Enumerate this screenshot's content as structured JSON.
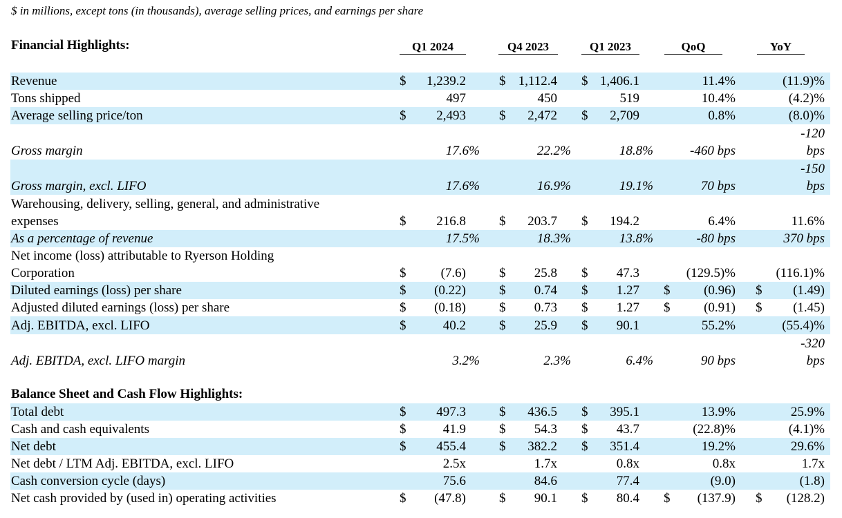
{
  "note": "$ in millions, except tons (in thousands), average selling prices, and earnings per share",
  "section1_title": "Financial Highlights:",
  "section2_title": "Balance Sheet and Cash Flow Highlights:",
  "columns": [
    "Q1 2024",
    "Q4 2023",
    "Q1 2023",
    "QoQ",
    "YoY"
  ],
  "rows": [
    {
      "label": "Revenue",
      "shaded": true,
      "italic": false,
      "d1": "$",
      "q1_2024": "1,239.2",
      "d2": "$",
      "q4_2023": "1,112.4",
      "d3": "$",
      "q1_2023": "1,406.1",
      "d4": "",
      "qoq": "11.4%",
      "d5": "",
      "yoy": "(11.9)%"
    },
    {
      "label": "Tons shipped",
      "shaded": false,
      "italic": false,
      "d1": "",
      "q1_2024": "497",
      "d2": "",
      "q4_2023": "450",
      "d3": "",
      "q1_2023": "519",
      "d4": "",
      "qoq": "10.4%",
      "d5": "",
      "yoy": "(4.2)%"
    },
    {
      "label": "Average selling price/ton",
      "shaded": true,
      "italic": false,
      "d1": "$",
      "q1_2024": "2,493",
      "d2": "$",
      "q4_2023": "2,472",
      "d3": "$",
      "q1_2023": "2,709",
      "d4": "",
      "qoq": "0.8%",
      "d5": "",
      "yoy": "(8.0)%"
    },
    {
      "label": "Gross margin",
      "shaded": false,
      "italic": true,
      "d1": "",
      "q1_2024": "17.6%",
      "d2": "",
      "q4_2023": "22.2%",
      "d3": "",
      "q1_2023": "18.8%",
      "d4": "",
      "qoq": "-460 bps",
      "d5": "",
      "yoy": [
        "-120",
        "bps"
      ]
    },
    {
      "label": "Gross margin, excl. LIFO",
      "shaded": true,
      "italic": true,
      "d1": "",
      "q1_2024": "17.6%",
      "d2": "",
      "q4_2023": "16.9%",
      "d3": "",
      "q1_2023": "19.1%",
      "d4": "",
      "qoq": "70 bps",
      "d5": "",
      "yoy": [
        "-150",
        "bps"
      ]
    },
    {
      "label": [
        "Warehousing, delivery, selling, general, and administrative",
        "expenses"
      ],
      "shaded": false,
      "italic": false,
      "d1": "$",
      "q1_2024": "216.8",
      "d2": "$",
      "q4_2023": "203.7",
      "d3": "$",
      "q1_2023": "194.2",
      "d4": "",
      "qoq": "6.4%",
      "d5": "",
      "yoy": "11.6%"
    },
    {
      "label": "As a percentage of revenue",
      "shaded": true,
      "italic": true,
      "d1": "",
      "q1_2024": "17.5%",
      "d2": "",
      "q4_2023": "18.3%",
      "d3": "",
      "q1_2023": "13.8%",
      "d4": "",
      "qoq": "-80 bps",
      "d5": "",
      "yoy": "370 bps"
    },
    {
      "label": [
        "Net income (loss) attributable to Ryerson Holding",
        "Corporation"
      ],
      "shaded": false,
      "italic": false,
      "d1": "$",
      "q1_2024": "(7.6)",
      "d2": "$",
      "q4_2023": "25.8",
      "d3": "$",
      "q1_2023": "47.3",
      "d4": "",
      "qoq": "(129.5)%",
      "d5": "",
      "yoy": "(116.1)%"
    },
    {
      "label": "Diluted earnings (loss) per share",
      "shaded": true,
      "italic": false,
      "d1": "$",
      "q1_2024": "(0.22)",
      "d2": "$",
      "q4_2023": "0.74",
      "d3": "$",
      "q1_2023": "1.27",
      "d4": "$",
      "qoq": "(0.96)",
      "d5": "$",
      "yoy": "(1.49)"
    },
    {
      "label": "Adjusted diluted earnings (loss) per share",
      "shaded": false,
      "italic": false,
      "d1": "$",
      "q1_2024": "(0.18)",
      "d2": "$",
      "q4_2023": "0.73",
      "d3": "$",
      "q1_2023": "1.27",
      "d4": "$",
      "qoq": "(0.91)",
      "d5": "$",
      "yoy": "(1.45)"
    },
    {
      "label": "Adj. EBITDA, excl. LIFO",
      "shaded": true,
      "italic": false,
      "d1": "$",
      "q1_2024": "40.2",
      "d2": "$",
      "q4_2023": "25.9",
      "d3": "$",
      "q1_2023": "90.1",
      "d4": "",
      "qoq": "55.2%",
      "d5": "",
      "yoy": "(55.4)%"
    },
    {
      "label": "Adj. EBITDA, excl. LIFO margin",
      "shaded": false,
      "italic": true,
      "d1": "",
      "q1_2024": "3.2%",
      "d2": "",
      "q4_2023": "2.3%",
      "d3": "",
      "q1_2023": "6.4%",
      "d4": "",
      "qoq": "90 bps",
      "d5": "",
      "yoy": [
        "-320",
        "bps"
      ]
    },
    {
      "label": "Total debt",
      "shaded": true,
      "italic": false,
      "d1": "$",
      "q1_2024": "497.3",
      "d2": "$",
      "q4_2023": "436.5",
      "d3": "$",
      "q1_2023": "395.1",
      "d4": "",
      "qoq": "13.9%",
      "d5": "",
      "yoy": "25.9%"
    },
    {
      "label": "Cash and cash equivalents",
      "shaded": false,
      "italic": false,
      "d1": "$",
      "q1_2024": "41.9",
      "d2": "$",
      "q4_2023": "54.3",
      "d3": "$",
      "q1_2023": "43.7",
      "d4": "",
      "qoq": "(22.8)%",
      "d5": "",
      "yoy": "(4.1)%"
    },
    {
      "label": "Net debt",
      "shaded": true,
      "italic": false,
      "d1": "$",
      "q1_2024": "455.4",
      "d2": "$",
      "q4_2023": "382.2",
      "d3": "$",
      "q1_2023": "351.4",
      "d4": "",
      "qoq": "19.2%",
      "d5": "",
      "yoy": "29.6%"
    },
    {
      "label": "Net debt / LTM Adj. EBITDA, excl. LIFO",
      "shaded": false,
      "italic": false,
      "d1": "",
      "q1_2024": "2.5x",
      "d2": "",
      "q4_2023": "1.7x",
      "d3": "",
      "q1_2023": "0.8x",
      "d4": "",
      "qoq": "0.8x",
      "d5": "",
      "yoy": "1.7x"
    },
    {
      "label": "Cash conversion cycle (days)",
      "shaded": true,
      "italic": false,
      "d1": "",
      "q1_2024": "75.6",
      "d2": "",
      "q4_2023": "84.6",
      "d3": "",
      "q1_2023": "77.4",
      "d4": "",
      "qoq": "(9.0)",
      "d5": "",
      "yoy": "(1.8)"
    },
    {
      "label": "Net cash provided by (used in)  operating activities",
      "shaded": false,
      "italic": false,
      "d1": "$",
      "q1_2024": "(47.8)",
      "d2": "$",
      "q4_2023": "90.1",
      "d3": "$",
      "q1_2023": "80.4",
      "d4": "$",
      "qoq": "(137.9)",
      "d5": "$",
      "yoy": "(128.2)"
    }
  ]
}
